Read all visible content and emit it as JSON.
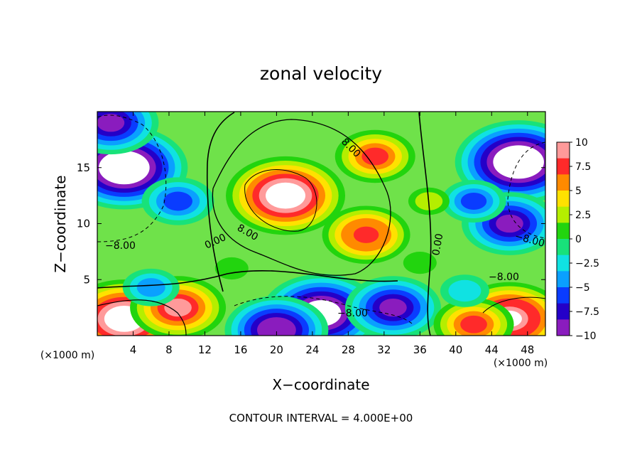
{
  "chart_data": {
    "type": "heatmap",
    "title": "zonal velocity",
    "xlabel": "X−coordinate",
    "ylabel": "Z−coordinate",
    "x_unit_left": "(×1000 m)",
    "x_unit_right": "(×1000 m)",
    "footer": "CONTOUR INTERVAL = 4.000E+00",
    "xlim": [
      0,
      50
    ],
    "ylim": [
      0,
      20
    ],
    "x_ticks": [
      4,
      8,
      12,
      16,
      20,
      24,
      28,
      32,
      36,
      40,
      44,
      48
    ],
    "y_ticks": [
      5,
      10,
      15
    ],
    "colorbar": {
      "min": -10,
      "max": 10,
      "ticks": [
        "10",
        "7.5",
        "5",
        "2.5",
        "0",
        "−2.5",
        "−5",
        "−7.5",
        "−10"
      ],
      "colors": [
        "#ff9a9a",
        "#ff2a2a",
        "#ff8a00",
        "#ffe100",
        "#b5ee00",
        "#22d40e",
        "#18e27a",
        "#10e2e2",
        "#0aa0ff",
        "#0a3cff",
        "#2400c8",
        "#8a1cbe"
      ]
    },
    "contour_labels": [
      "8.00",
      "8.00",
      "0.00",
      "0.00",
      "−8.00",
      "−8.00",
      "−8.00",
      "−8.00"
    ],
    "features": [
      {
        "x": 21,
        "z": 12.5,
        "value": 12
      },
      {
        "x": 30,
        "z": 9,
        "value": 8
      },
      {
        "x": 31,
        "z": 16,
        "value": 7
      },
      {
        "x": 3,
        "z": 15,
        "value": -13
      },
      {
        "x": 1.5,
        "z": 19,
        "value": -9
      },
      {
        "x": 47,
        "z": 15.5,
        "value": -13
      },
      {
        "x": 46,
        "z": 10,
        "value": -9
      },
      {
        "x": 25,
        "z": 2,
        "value": -12
      },
      {
        "x": 20,
        "z": 0.5,
        "value": -10
      },
      {
        "x": 33,
        "z": 2.5,
        "value": -9
      },
      {
        "x": 3,
        "z": 1.5,
        "value": 12
      },
      {
        "x": 9,
        "z": 2.5,
        "value": 9
      },
      {
        "x": 46,
        "z": 1.5,
        "value": 11
      },
      {
        "x": 42,
        "z": 1,
        "value": 7
      },
      {
        "x": 9,
        "z": 12,
        "value": -6
      },
      {
        "x": 42,
        "z": 12,
        "value": -5
      },
      {
        "x": 37,
        "z": 12,
        "value": 2
      },
      {
        "x": 15,
        "z": 6,
        "value": 1
      },
      {
        "x": 6,
        "z": 4.3,
        "value": -4
      },
      {
        "x": 41,
        "z": 4,
        "value": -3
      },
      {
        "x": 36,
        "z": 6.5,
        "value": 1
      }
    ]
  }
}
